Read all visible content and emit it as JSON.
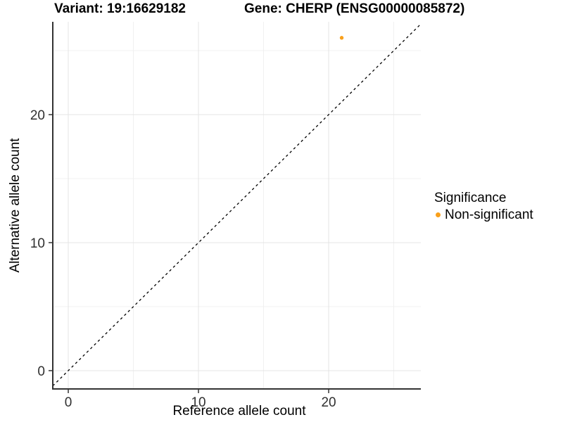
{
  "titles": {
    "variant": "Variant: 19:16629182",
    "gene": "Gene: CHERP (ENSG00000085872)"
  },
  "chart_data": {
    "type": "scatter",
    "title": "Variant: 19:16629182   Gene: CHERP (ENSG00000085872)",
    "xlabel": "Reference allele count",
    "ylabel": "Alternative allele count",
    "xlim": [
      -1.19,
      27.08
    ],
    "ylim": [
      -1.43,
      27.25
    ],
    "x_ticks": [
      0,
      10,
      20
    ],
    "y_ticks": [
      0,
      10,
      20
    ],
    "x_minor_ticks": [
      5,
      15,
      25
    ],
    "y_minor_ticks": [
      5,
      15,
      25
    ],
    "grid": "major+minor on white background",
    "points": [
      {
        "x": 21,
        "y": 26,
        "series": "Non-significant"
      }
    ],
    "reference_line": {
      "type": "identity",
      "slope": 1,
      "intercept": 0,
      "style": "dashed",
      "color": "#000000"
    },
    "legend": {
      "title": "Significance",
      "position": "right",
      "items": [
        {
          "label": "Non-significant",
          "color": "#F9A01B"
        }
      ]
    }
  },
  "colors": {
    "point": "#F9A01B",
    "axis_line": "#333333",
    "tick_mark": "#333333",
    "tick_label": "#303030",
    "grid_major": "#E4E4E4",
    "grid_minor": "#F0F0F0",
    "background": "#FFFFFF"
  }
}
